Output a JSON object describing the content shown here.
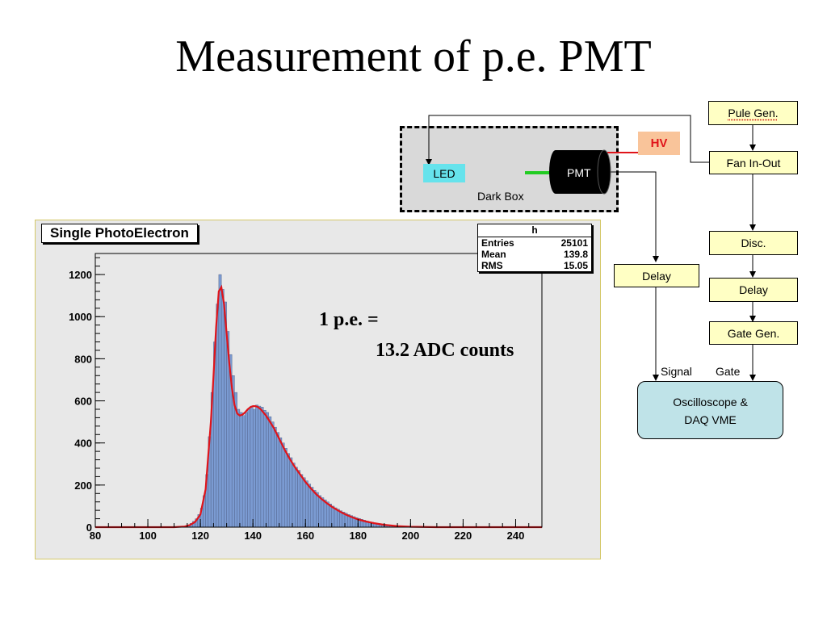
{
  "title": "Measurement of p.e. PMT",
  "chart_data": {
    "type": "bar",
    "title": "Single PhotoElectron",
    "xlim": [
      80,
      250
    ],
    "ylim": [
      0,
      1300
    ],
    "x_ticks": [
      80,
      100,
      120,
      140,
      160,
      180,
      200,
      220,
      240
    ],
    "y_ticks": [
      0,
      200,
      400,
      600,
      800,
      1000,
      1200
    ],
    "x_tick_labels": [
      "80",
      "100",
      "120",
      "140",
      "160",
      "180",
      "200",
      "220",
      "240"
    ],
    "y_tick_labels": [
      "0",
      "200",
      "400",
      "600",
      "800",
      "1000",
      "1200"
    ],
    "bin_width": 1,
    "bins": [
      [
        114,
        5
      ],
      [
        115,
        10
      ],
      [
        116,
        18
      ],
      [
        117,
        28
      ],
      [
        118,
        40
      ],
      [
        119,
        60
      ],
      [
        120,
        90
      ],
      [
        121,
        150
      ],
      [
        122,
        250
      ],
      [
        123,
        430
      ],
      [
        124,
        640
      ],
      [
        125,
        880
      ],
      [
        126,
        1060
      ],
      [
        127,
        1200
      ],
      [
        128,
        1130
      ],
      [
        129,
        1070
      ],
      [
        130,
        930
      ],
      [
        131,
        820
      ],
      [
        132,
        720
      ],
      [
        133,
        640
      ],
      [
        134,
        560
      ],
      [
        135,
        545
      ],
      [
        136,
        530
      ],
      [
        137,
        545
      ],
      [
        138,
        560
      ],
      [
        139,
        575
      ],
      [
        140,
        560
      ],
      [
        141,
        580
      ],
      [
        142,
        575
      ],
      [
        143,
        570
      ],
      [
        144,
        555
      ],
      [
        145,
        545
      ],
      [
        146,
        525
      ],
      [
        147,
        500
      ],
      [
        148,
        475
      ],
      [
        149,
        450
      ],
      [
        150,
        425
      ],
      [
        151,
        400
      ],
      [
        152,
        375
      ],
      [
        153,
        350
      ],
      [
        154,
        330
      ],
      [
        155,
        305
      ],
      [
        156,
        285
      ],
      [
        157,
        270
      ],
      [
        158,
        250
      ],
      [
        159,
        235
      ],
      [
        160,
        220
      ],
      [
        161,
        205
      ],
      [
        162,
        190
      ],
      [
        163,
        175
      ],
      [
        164,
        165
      ],
      [
        165,
        150
      ],
      [
        166,
        140
      ],
      [
        167,
        130
      ],
      [
        168,
        120
      ],
      [
        169,
        110
      ],
      [
        170,
        100
      ],
      [
        171,
        92
      ],
      [
        172,
        85
      ],
      [
        173,
        78
      ],
      [
        174,
        72
      ],
      [
        175,
        66
      ],
      [
        176,
        60
      ],
      [
        177,
        55
      ],
      [
        178,
        50
      ],
      [
        179,
        45
      ],
      [
        180,
        41
      ],
      [
        181,
        37
      ],
      [
        182,
        33
      ],
      [
        183,
        29
      ],
      [
        184,
        26
      ],
      [
        185,
        23
      ],
      [
        186,
        20
      ],
      [
        187,
        17
      ],
      [
        188,
        14
      ],
      [
        189,
        12
      ],
      [
        190,
        10
      ],
      [
        191,
        8
      ],
      [
        192,
        7
      ],
      [
        193,
        6
      ],
      [
        194,
        5
      ],
      [
        195,
        4
      ],
      [
        196,
        3
      ],
      [
        197,
        3
      ],
      [
        198,
        2
      ],
      [
        199,
        2
      ],
      [
        200,
        1
      ]
    ],
    "fit_curve": [
      [
        80,
        0
      ],
      [
        110,
        0
      ],
      [
        114,
        3
      ],
      [
        116,
        10
      ],
      [
        118,
        25
      ],
      [
        120,
        60
      ],
      [
        122,
        180
      ],
      [
        124,
        500
      ],
      [
        125,
        720
      ],
      [
        126,
        950
      ],
      [
        127,
        1120
      ],
      [
        128,
        1140
      ],
      [
        129,
        1060
      ],
      [
        130,
        920
      ],
      [
        131,
        780
      ],
      [
        132,
        660
      ],
      [
        133,
        580
      ],
      [
        134,
        540
      ],
      [
        135,
        530
      ],
      [
        136,
        535
      ],
      [
        137,
        545
      ],
      [
        138,
        560
      ],
      [
        139,
        570
      ],
      [
        140,
        575
      ],
      [
        141,
        575
      ],
      [
        142,
        570
      ],
      [
        143,
        560
      ],
      [
        144,
        545
      ],
      [
        145,
        530
      ],
      [
        146,
        510
      ],
      [
        148,
        470
      ],
      [
        150,
        420
      ],
      [
        152,
        370
      ],
      [
        154,
        325
      ],
      [
        156,
        285
      ],
      [
        158,
        250
      ],
      [
        160,
        215
      ],
      [
        162,
        185
      ],
      [
        164,
        158
      ],
      [
        166,
        135
      ],
      [
        168,
        115
      ],
      [
        170,
        97
      ],
      [
        172,
        82
      ],
      [
        174,
        68
      ],
      [
        176,
        56
      ],
      [
        178,
        46
      ],
      [
        180,
        37
      ],
      [
        183,
        27
      ],
      [
        186,
        19
      ],
      [
        190,
        11
      ],
      [
        195,
        5
      ],
      [
        200,
        2
      ],
      [
        210,
        0
      ],
      [
        250,
        0
      ]
    ],
    "stats": {
      "name": "h",
      "rows": [
        {
          "label": "Entries",
          "value": "25101"
        },
        {
          "label": "Mean",
          "value": "139.8"
        },
        {
          "label": "RMS",
          "value": "15.05"
        }
      ]
    },
    "annotation_line1": "1 p.e. =",
    "annotation_line2": "13.2 ADC counts",
    "colors": {
      "bars": "#7b9bd2",
      "bar_edge": "#4a5a80",
      "fit": "#e0141a",
      "frame_bg": "#e8e8e8"
    }
  },
  "diagram": {
    "led": "LED",
    "pmt": "PMT",
    "dark_box": "Dark Box",
    "hv": "HV",
    "pulse_gen": "Pule Gen.",
    "fan": "Fan In-Out",
    "disc": "Disc.",
    "delay_right": "Delay",
    "gate_gen": "Gate Gen.",
    "delay_left": "Delay",
    "signal": "Signal",
    "gate": "Gate",
    "osc_line1": "Oscilloscope &",
    "osc_line2": "DAQ VME",
    "colors": {
      "led": "#66e3ec",
      "hv": "#f9c49a",
      "hv_text": "#e0141a",
      "box": "#ffffc4",
      "osc": "#bfe3e8",
      "green_wire": "#22cc22"
    }
  }
}
